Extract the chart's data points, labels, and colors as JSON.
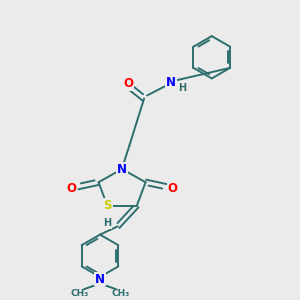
{
  "bg_color": "#ebebeb",
  "bond_color": "#2d6e6e",
  "heteroatom_colors": {
    "O": "#ff0000",
    "N": "#0000ff",
    "S": "#cccc00",
    "H": "#2d6e6e"
  },
  "font_size_atoms": 8.5,
  "font_size_small": 7,
  "line_width": 1.4
}
